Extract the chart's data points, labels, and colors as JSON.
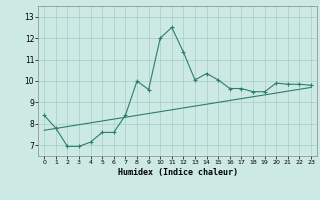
{
  "xlabel": "Humidex (Indice chaleur)",
  "background_color": "#cce9e4",
  "grid_color": "#aad4cc",
  "line_color": "#2d7d6e",
  "xlim": [
    -0.5,
    23.5
  ],
  "ylim": [
    6.5,
    13.5
  ],
  "yticks": [
    7,
    8,
    9,
    10,
    11,
    12,
    13
  ],
  "xticks": [
    0,
    1,
    2,
    3,
    4,
    5,
    6,
    7,
    8,
    9,
    10,
    11,
    12,
    13,
    14,
    15,
    16,
    17,
    18,
    19,
    20,
    21,
    22,
    23
  ],
  "line1_x": [
    0,
    1,
    2,
    3,
    4,
    5,
    6,
    7,
    8,
    9,
    10,
    11,
    12,
    13,
    14,
    15,
    16,
    17,
    18,
    19,
    20,
    21,
    22,
    23
  ],
  "line1_y": [
    8.4,
    7.8,
    6.95,
    6.95,
    7.15,
    7.6,
    7.6,
    8.4,
    10.0,
    9.6,
    12.0,
    12.5,
    11.35,
    10.05,
    10.35,
    10.05,
    9.65,
    9.65,
    9.5,
    9.5,
    9.9,
    9.85,
    9.85,
    9.8
  ],
  "line2_x": [
    0,
    23
  ],
  "line2_y": [
    7.7,
    9.7
  ]
}
